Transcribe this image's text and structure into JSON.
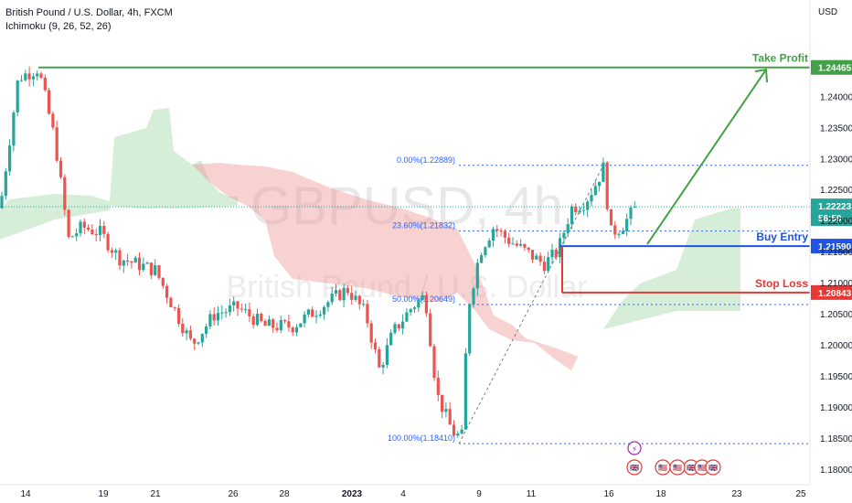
{
  "header": {
    "title": "British Pound / U.S. Dollar, 4h, FXCM",
    "indicator": "Ichimoku (9, 26, 52, 26)",
    "currency": "USD"
  },
  "watermark": {
    "symbol": "GBPUSD, 4h",
    "name": "British Pound / U.S. Dollar"
  },
  "colors": {
    "bull": "#26a69a",
    "bear": "#ef5350",
    "cloud_bull": "#a5d6a7",
    "cloud_bear": "#ef9a9a",
    "take_profit": "#43a047",
    "buy_entry": "#1e53e5",
    "stop_loss": "#e53935",
    "fib": "#2962ff"
  },
  "chart_data": {
    "type": "candlestick",
    "symbol": "GBPUSD",
    "timeframe": "4h",
    "y_axis": {
      "range": [
        1.1775,
        1.2555
      ],
      "ticks": [
        "1.24000",
        "1.23500",
        "1.23000",
        "1.22500",
        "1.22000",
        "1.21500",
        "1.21000",
        "1.20500",
        "1.20000",
        "1.19500",
        "1.19000",
        "1.18500",
        "1.18000"
      ]
    },
    "x_axis": {
      "ticks": [
        "14",
        "19",
        "21",
        "26",
        "28",
        "2023",
        "4",
        "9",
        "11",
        "16",
        "18",
        "23",
        "25"
      ]
    },
    "levels": [
      {
        "key": "take_profit",
        "label": "Take Profit",
        "value": 1.24465,
        "tag": "1.24465"
      },
      {
        "key": "buy_entry",
        "label": "Buy Entry",
        "value": 1.2159,
        "tag": "1.21590"
      },
      {
        "key": "stop_loss",
        "label": "Stop Loss",
        "value": 1.20843,
        "tag": "1.20843"
      }
    ],
    "current_price": {
      "value": 1.22223,
      "tag": "1.22223",
      "countdown": "56:50"
    },
    "fibonacci": [
      {
        "label": "0.00%(1.22889)",
        "value": 1.22889
      },
      {
        "label": "23.60%(1.21832)",
        "value": 1.21832
      },
      {
        "label": "50.00%(1.20649)",
        "value": 1.20649
      },
      {
        "label": "100.00%(1.18410)",
        "value": 1.1841
      }
    ],
    "projection": {
      "from": 1.2162,
      "to": 1.2443
    },
    "events": [
      "⚡",
      "🇬🇧",
      "🇺🇸",
      "🇬🇧",
      "🇺🇸",
      "🇬🇧",
      "🇺🇸"
    ]
  }
}
